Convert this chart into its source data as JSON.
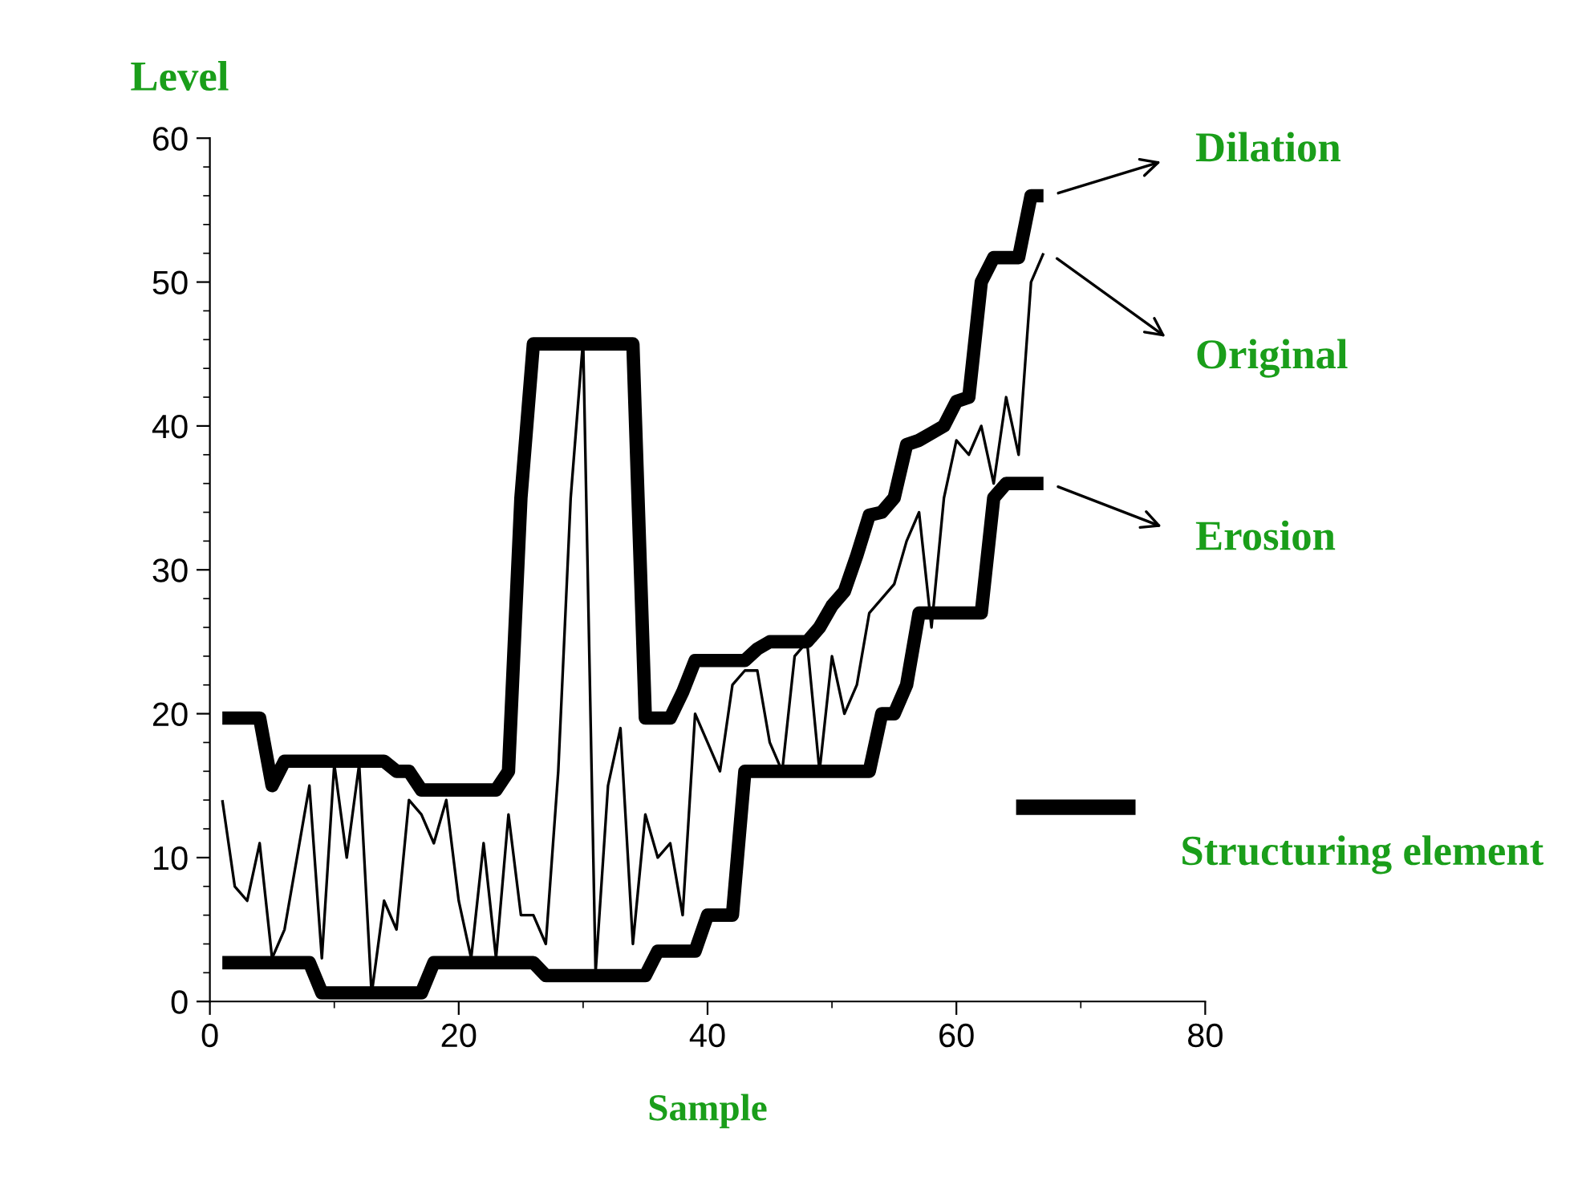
{
  "chart_data": {
    "type": "line",
    "xlabel": "Sample",
    "ylabel": "Level",
    "x": [
      1,
      2,
      3,
      4,
      5,
      6,
      7,
      8,
      9,
      10,
      11,
      12,
      13,
      14,
      15,
      16,
      17,
      18,
      19,
      20,
      21,
      22,
      23,
      24,
      25,
      26,
      27,
      28,
      29,
      30,
      31,
      32,
      33,
      34,
      35,
      36,
      37,
      38,
      39,
      40,
      41,
      42,
      43,
      44,
      45,
      46,
      47,
      48,
      49,
      50,
      51,
      52,
      53,
      54,
      55,
      56,
      57,
      58,
      59,
      60,
      61,
      62,
      63,
      64,
      65,
      66,
      67
    ],
    "series": [
      {
        "name": "Dilation",
        "color": "#000000",
        "values": [
          19.7,
          19.7,
          19.7,
          19.7,
          15,
          16.7,
          16.7,
          16.7,
          16.7,
          16.7,
          16.7,
          16.7,
          16.7,
          16.7,
          16,
          16,
          14.7,
          14.7,
          14.7,
          14.7,
          14.7,
          14.7,
          14.7,
          16,
          35,
          45.7,
          45.7,
          45.7,
          45.7,
          45.7,
          45.7,
          45.7,
          45.7,
          45.7,
          19.7,
          19.7,
          19.7,
          21.5,
          23.7,
          23.7,
          23.7,
          23.7,
          23.7,
          24.5,
          25,
          25,
          25,
          25,
          26,
          27.5,
          28.5,
          31,
          33.8,
          34,
          35,
          38.7,
          39,
          39.5,
          40,
          41.7,
          42,
          50,
          51.7,
          51.7,
          51.7,
          56,
          56
        ]
      },
      {
        "name": "Original",
        "color": "#000000",
        "values": [
          14,
          8,
          7,
          11,
          3,
          5,
          10,
          15,
          3,
          16.5,
          10,
          16.5,
          0.5,
          7,
          5,
          14,
          13,
          11,
          14,
          7,
          3,
          11,
          3,
          13,
          6,
          6,
          4,
          16,
          35,
          46,
          2,
          15,
          19,
          4,
          13,
          10,
          11,
          6,
          20,
          18,
          16,
          22,
          23,
          23,
          18,
          16,
          24,
          25,
          16,
          24,
          20,
          22,
          27,
          28,
          29,
          32,
          34,
          26,
          35,
          39,
          38,
          40,
          36,
          42,
          38,
          50,
          52
        ]
      },
      {
        "name": "Erosion",
        "color": "#000000",
        "values": [
          2.7,
          2.7,
          2.7,
          2.7,
          2.7,
          2.7,
          2.7,
          2.7,
          0.6,
          0.6,
          0.6,
          0.6,
          0.6,
          0.6,
          0.6,
          0.6,
          0.6,
          2.7,
          2.7,
          2.7,
          2.7,
          2.7,
          2.7,
          2.7,
          2.7,
          2.7,
          1.8,
          1.8,
          1.8,
          1.8,
          1.8,
          1.8,
          1.8,
          1.8,
          1.8,
          3.5,
          3.5,
          3.5,
          3.5,
          6,
          6,
          6,
          16,
          16,
          16,
          16,
          16,
          16,
          16,
          16,
          16,
          16,
          16,
          20,
          20,
          22,
          27,
          27,
          27,
          27,
          27,
          27,
          35,
          36,
          36,
          36,
          36
        ]
      }
    ],
    "annotations": [
      "Structuring element"
    ],
    "xlim": [
      0,
      80
    ],
    "xticks": [
      0,
      20,
      40,
      60,
      80
    ],
    "ylim": [
      0,
      60
    ],
    "yticks": [
      0,
      10,
      20,
      30,
      40,
      50,
      60
    ],
    "grid": false,
    "legend": "right",
    "marker": "none",
    "line_style": "solid"
  }
}
